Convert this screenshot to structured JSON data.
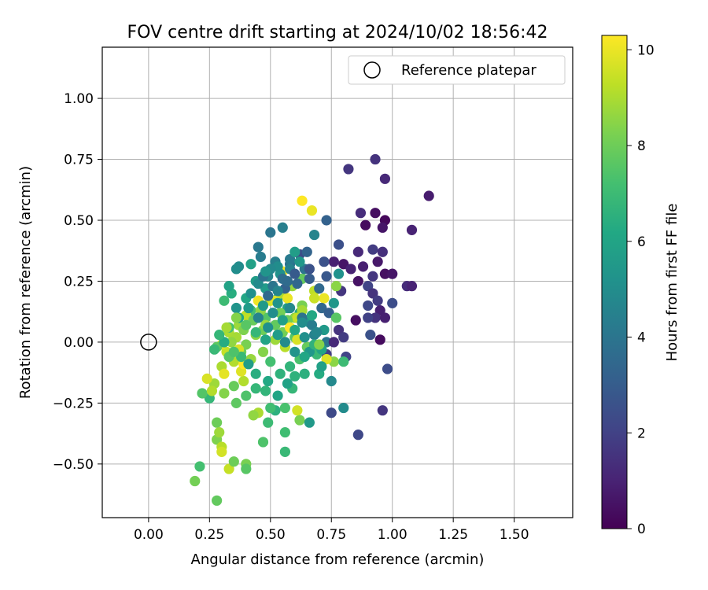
{
  "chart_data": {
    "type": "scatter",
    "title": "FOV centre drift starting at 2024/10/02 18:56:42",
    "xlabel": "Angular distance from reference (arcmin)",
    "ylabel": "Rotation from reference (arcmin)",
    "xlim": [
      -0.19,
      1.74
    ],
    "ylim": [
      -0.72,
      1.21
    ],
    "x_ticks": [
      0.0,
      0.25,
      0.5,
      0.75,
      1.0,
      1.25,
      1.5
    ],
    "x_tick_labels": [
      "0.00",
      "0.25",
      "0.50",
      "0.75",
      "1.00",
      "1.25",
      "1.50"
    ],
    "y_ticks": [
      -0.5,
      -0.25,
      0.0,
      0.25,
      0.5,
      0.75,
      1.0
    ],
    "y_tick_labels": [
      "−0.50",
      "−0.25",
      "0.00",
      "0.25",
      "0.50",
      "0.75",
      "1.00"
    ],
    "grid": true,
    "legend": {
      "position": "upper-right",
      "entries": [
        "Reference platepar"
      ]
    },
    "reference_point": {
      "x": 0.0,
      "y": 0.0,
      "label": "Reference platepar"
    },
    "colorbar": {
      "label": "Hours from first FF file",
      "range": [
        0,
        10.3
      ],
      "ticks": [
        0,
        2,
        4,
        6,
        8,
        10
      ],
      "tick_labels": [
        "0",
        "2",
        "4",
        "6",
        "8",
        "10"
      ],
      "colormap": "viridis"
    },
    "points": [
      [
        1.15,
        0.6,
        0.8
      ],
      [
        0.93,
        0.75,
        1.5
      ],
      [
        0.82,
        0.71,
        1.6
      ],
      [
        0.97,
        0.67,
        1.2
      ],
      [
        0.87,
        0.53,
        1.3
      ],
      [
        0.93,
        0.53,
        0.4
      ],
      [
        0.97,
        0.5,
        0.2
      ],
      [
        0.89,
        0.48,
        0.3
      ],
      [
        0.96,
        0.47,
        0.6
      ],
      [
        1.08,
        0.46,
        1.0
      ],
      [
        0.86,
        0.37,
        1.2
      ],
      [
        0.92,
        0.38,
        1.8
      ],
      [
        0.96,
        0.37,
        1.4
      ],
      [
        0.94,
        0.33,
        0.7
      ],
      [
        0.88,
        0.31,
        0.9
      ],
      [
        0.97,
        0.28,
        0.4
      ],
      [
        1.0,
        0.28,
        0.6
      ],
      [
        0.92,
        0.27,
        1.6
      ],
      [
        0.86,
        0.25,
        0.5
      ],
      [
        0.9,
        0.23,
        2.1
      ],
      [
        1.06,
        0.23,
        1.3
      ],
      [
        1.08,
        0.23,
        1.0
      ],
      [
        0.92,
        0.2,
        1.5
      ],
      [
        0.94,
        0.17,
        1.8
      ],
      [
        0.9,
        0.15,
        2.2
      ],
      [
        0.95,
        0.13,
        0.9
      ],
      [
        1.0,
        0.16,
        2.4
      ],
      [
        0.93,
        0.1,
        1.5
      ],
      [
        0.97,
        0.1,
        0.9
      ],
      [
        0.85,
        0.09,
        0.4
      ],
      [
        0.9,
        0.1,
        2.0
      ],
      [
        0.79,
        0.21,
        1.6
      ],
      [
        0.8,
        0.32,
        0.6
      ],
      [
        0.83,
        0.3,
        1.0
      ],
      [
        0.76,
        0.33,
        0.9
      ],
      [
        0.72,
        0.33,
        2.6
      ],
      [
        0.78,
        0.4,
        2.5
      ],
      [
        0.73,
        0.5,
        3.2
      ],
      [
        0.68,
        0.44,
        4.6
      ],
      [
        0.55,
        0.47,
        4.4
      ],
      [
        0.5,
        0.45,
        4.0
      ],
      [
        0.45,
        0.39,
        4.1
      ],
      [
        0.37,
        0.31,
        4.9
      ],
      [
        0.36,
        0.3,
        5.0
      ],
      [
        0.78,
        0.05,
        1.5
      ],
      [
        0.8,
        0.02,
        1.8
      ],
      [
        0.91,
        0.03,
        2.6
      ],
      [
        0.95,
        0.01,
        0.3
      ],
      [
        0.73,
        -0.05,
        1.9
      ],
      [
        0.81,
        -0.06,
        2.1
      ],
      [
        0.98,
        -0.11,
        2.4
      ],
      [
        0.75,
        -0.16,
        4.8
      ],
      [
        0.8,
        -0.27,
        4.9
      ],
      [
        0.75,
        -0.29,
        2.3
      ],
      [
        0.96,
        -0.28,
        1.6
      ],
      [
        0.86,
        -0.38,
        2.2
      ],
      [
        0.73,
        0.0,
        4.0
      ],
      [
        0.68,
        0.03,
        4.5
      ],
      [
        0.72,
        0.05,
        5.5
      ],
      [
        0.66,
        0.08,
        5.4
      ],
      [
        0.62,
        0.12,
        6.0
      ],
      [
        0.57,
        0.14,
        5.8
      ],
      [
        0.53,
        0.18,
        6.3
      ],
      [
        0.48,
        0.22,
        5.6
      ],
      [
        0.44,
        0.25,
        5.7
      ],
      [
        0.4,
        0.18,
        6.1
      ],
      [
        0.36,
        0.14,
        5.3
      ],
      [
        0.34,
        0.2,
        6.4
      ],
      [
        0.31,
        0.17,
        7.0
      ],
      [
        0.33,
        0.23,
        5.9
      ],
      [
        0.42,
        0.13,
        7.2
      ],
      [
        0.48,
        0.1,
        7.5
      ],
      [
        0.52,
        0.07,
        7.8
      ],
      [
        0.55,
        0.04,
        8.1
      ],
      [
        0.6,
        0.02,
        7.6
      ],
      [
        0.65,
        -0.02,
        7.9
      ],
      [
        0.69,
        -0.05,
        6.9
      ],
      [
        0.62,
        -0.07,
        7.3
      ],
      [
        0.58,
        -0.1,
        6.7
      ],
      [
        0.54,
        -0.13,
        6.6
      ],
      [
        0.49,
        -0.16,
        6.2
      ],
      [
        0.44,
        -0.19,
        6.8
      ],
      [
        0.4,
        -0.22,
        7.4
      ],
      [
        0.36,
        -0.25,
        7.7
      ],
      [
        0.31,
        -0.21,
        8.4
      ],
      [
        0.27,
        -0.17,
        8.8
      ],
      [
        0.25,
        -0.23,
        6.8
      ],
      [
        0.22,
        -0.21,
        7.5
      ],
      [
        0.28,
        -0.33,
        8.0
      ],
      [
        0.28,
        -0.4,
        8.3
      ],
      [
        0.3,
        -0.43,
        9.2
      ],
      [
        0.33,
        -0.52,
        9.4
      ],
      [
        0.35,
        -0.49,
        8.0
      ],
      [
        0.4,
        -0.5,
        8.2
      ],
      [
        0.4,
        -0.52,
        7.6
      ],
      [
        0.3,
        -0.45,
        9.6
      ],
      [
        0.29,
        -0.37,
        8.8
      ],
      [
        0.19,
        -0.57,
        8.1
      ],
      [
        0.21,
        -0.51,
        7.2
      ],
      [
        0.28,
        -0.65,
        7.8
      ],
      [
        0.56,
        -0.45,
        6.9
      ],
      [
        0.56,
        -0.37,
        7.1
      ],
      [
        0.49,
        -0.33,
        7.0
      ],
      [
        0.47,
        -0.41,
        7.4
      ],
      [
        0.52,
        -0.28,
        6.5
      ],
      [
        0.56,
        -0.27,
        7.3
      ],
      [
        0.59,
        -0.19,
        6.8
      ],
      [
        0.62,
        -0.32,
        8.2
      ],
      [
        0.66,
        -0.33,
        5.5
      ],
      [
        0.61,
        -0.28,
        9.6
      ],
      [
        0.64,
        -0.13,
        6.5
      ],
      [
        0.7,
        -0.13,
        6.3
      ],
      [
        0.76,
        -0.08,
        8.5
      ],
      [
        0.8,
        -0.08,
        7.0
      ],
      [
        0.66,
        -0.04,
        5.4
      ],
      [
        0.73,
        -0.07,
        9.8
      ],
      [
        0.39,
        -0.16,
        9.1
      ],
      [
        0.45,
        -0.29,
        9.0
      ],
      [
        0.43,
        -0.3,
        8.6
      ],
      [
        0.38,
        -0.12,
        9.8
      ],
      [
        0.35,
        -0.08,
        9.1
      ],
      [
        0.32,
        -0.04,
        9.4
      ],
      [
        0.3,
        -0.01,
        9.7
      ],
      [
        0.28,
        -0.02,
        7.7
      ],
      [
        0.33,
        0.04,
        9.0
      ],
      [
        0.37,
        0.07,
        8.8
      ],
      [
        0.4,
        0.11,
        9.3
      ],
      [
        0.46,
        0.13,
        8.5
      ],
      [
        0.5,
        0.17,
        9.6
      ],
      [
        0.54,
        0.2,
        9.0
      ],
      [
        0.59,
        0.23,
        8.7
      ],
      [
        0.63,
        0.26,
        7.8
      ],
      [
        0.68,
        0.21,
        9.3
      ],
      [
        0.72,
        0.18,
        10.0
      ],
      [
        0.68,
        0.18,
        9.5
      ],
      [
        0.63,
        0.15,
        8.2
      ],
      [
        0.6,
        0.1,
        8.5
      ],
      [
        0.58,
        0.06,
        9.1
      ],
      [
        0.61,
        0.01,
        9.7
      ],
      [
        0.56,
        -0.02,
        9.2
      ],
      [
        0.52,
        0.01,
        8.8
      ],
      [
        0.47,
        0.05,
        8.0
      ],
      [
        0.43,
        0.09,
        7.9
      ],
      [
        0.39,
        0.05,
        8.3
      ],
      [
        0.36,
        0.02,
        8.9
      ],
      [
        0.33,
        -0.06,
        7.6
      ],
      [
        0.38,
        -0.04,
        8.0
      ],
      [
        0.42,
        -0.07,
        8.7
      ],
      [
        0.47,
        -0.04,
        8.4
      ],
      [
        0.5,
        -0.08,
        7.2
      ],
      [
        0.45,
        0.17,
        10.1
      ],
      [
        0.52,
        0.17,
        9.8
      ],
      [
        0.57,
        0.18,
        10.0
      ],
      [
        0.55,
        0.29,
        10.2
      ],
      [
        0.61,
        0.1,
        9.4
      ],
      [
        0.63,
        0.13,
        8.9
      ],
      [
        0.57,
        0.09,
        8.0
      ],
      [
        0.54,
        0.12,
        8.1
      ],
      [
        0.48,
        0.07,
        8.7
      ],
      [
        0.44,
        0.03,
        8.5
      ],
      [
        0.4,
        -0.01,
        8.2
      ],
      [
        0.37,
        -0.03,
        9.7
      ],
      [
        0.34,
        0.0,
        8.6
      ],
      [
        0.3,
        -0.1,
        9.0
      ],
      [
        0.31,
        -0.13,
        9.9
      ],
      [
        0.35,
        -0.18,
        7.9
      ],
      [
        0.39,
        -0.09,
        10.3
      ],
      [
        0.58,
        0.06,
        10.3
      ],
      [
        0.63,
        0.58,
        10.3
      ],
      [
        0.67,
        0.54,
        10.0
      ],
      [
        0.64,
        0.3,
        4.0
      ],
      [
        0.58,
        0.32,
        3.8
      ],
      [
        0.52,
        0.33,
        4.4
      ],
      [
        0.54,
        0.28,
        5.2
      ],
      [
        0.49,
        0.27,
        4.6
      ],
      [
        0.45,
        0.24,
        4.9
      ],
      [
        0.42,
        0.2,
        5.1
      ],
      [
        0.47,
        0.15,
        5.5
      ],
      [
        0.51,
        0.12,
        5.0
      ],
      [
        0.55,
        0.09,
        5.8
      ],
      [
        0.6,
        0.05,
        6.2
      ],
      [
        0.64,
        0.02,
        5.1
      ],
      [
        0.68,
        -0.01,
        6.6
      ],
      [
        0.71,
        -0.03,
        6.0
      ],
      [
        0.67,
        0.07,
        4.3
      ],
      [
        0.63,
        0.1,
        3.9
      ],
      [
        0.58,
        0.14,
        4.8
      ],
      [
        0.53,
        0.16,
        5.3
      ],
      [
        0.49,
        0.19,
        3.6
      ],
      [
        0.56,
        0.22,
        3.2
      ],
      [
        0.61,
        0.24,
        3.4
      ],
      [
        0.66,
        0.26,
        3.0
      ],
      [
        0.7,
        0.22,
        3.5
      ],
      [
        0.73,
        0.27,
        2.8
      ],
      [
        0.66,
        0.3,
        2.6
      ],
      [
        0.62,
        0.36,
        2.4
      ],
      [
        0.58,
        0.34,
        4.2
      ],
      [
        0.53,
        0.31,
        5.0
      ],
      [
        0.5,
        0.3,
        4.8
      ],
      [
        0.47,
        0.27,
        3.9
      ],
      [
        0.6,
        0.37,
        5.7
      ],
      [
        0.62,
        0.33,
        5.4
      ],
      [
        0.58,
        0.3,
        4.5
      ],
      [
        0.55,
        0.26,
        3.7
      ],
      [
        0.51,
        0.23,
        4.0
      ],
      [
        0.48,
        0.29,
        5.3
      ],
      [
        0.65,
        0.37,
        3.3
      ],
      [
        0.6,
        0.28,
        2.9
      ],
      [
        0.57,
        0.25,
        3.6
      ],
      [
        0.53,
        0.21,
        4.6
      ],
      [
        0.42,
        0.32,
        5.8
      ],
      [
        0.46,
        0.35,
        4.3
      ],
      [
        0.78,
        0.28,
        5.2
      ],
      [
        0.77,
        0.23,
        8.5
      ],
      [
        0.71,
        0.14,
        3.4
      ],
      [
        0.67,
        0.11,
        6.2
      ],
      [
        0.63,
        0.08,
        5.0
      ],
      [
        0.69,
        0.04,
        4.7
      ],
      [
        0.74,
        0.12,
        3.1
      ],
      [
        0.76,
        0.16,
        5.4
      ],
      [
        0.77,
        0.1,
        7.6
      ],
      [
        0.76,
        0.0,
        1.2
      ],
      [
        0.7,
        -0.01,
        8.4
      ],
      [
        0.71,
        -0.1,
        5.8
      ],
      [
        0.64,
        -0.06,
        6.1
      ],
      [
        0.6,
        -0.14,
        6.6
      ],
      [
        0.57,
        -0.17,
        5.9
      ],
      [
        0.53,
        -0.22,
        6.0
      ],
      [
        0.5,
        -0.27,
        7.1
      ],
      [
        0.48,
        -0.2,
        6.7
      ],
      [
        0.44,
        -0.13,
        6.4
      ],
      [
        0.41,
        -0.09,
        5.7
      ],
      [
        0.38,
        -0.06,
        6.9
      ],
      [
        0.35,
        -0.04,
        7.4
      ],
      [
        0.31,
        0.0,
        6.3
      ],
      [
        0.29,
        0.03,
        6.8
      ],
      [
        0.33,
        0.06,
        7.2
      ],
      [
        0.37,
        0.1,
        6.1
      ],
      [
        0.41,
        0.14,
        5.6
      ],
      [
        0.45,
        0.1,
        4.6
      ],
      [
        0.49,
        0.06,
        5.1
      ],
      [
        0.53,
        0.03,
        5.6
      ],
      [
        0.56,
        0.0,
        4.9
      ],
      [
        0.6,
        -0.04,
        5.3
      ],
      [
        0.48,
        0.01,
        6.0
      ],
      [
        0.44,
        0.04,
        6.8
      ],
      [
        0.4,
        0.07,
        7.6
      ],
      [
        0.36,
        0.1,
        8.4
      ],
      [
        0.32,
        0.06,
        8.9
      ],
      [
        0.27,
        -0.03,
        6.9
      ],
      [
        0.26,
        -0.2,
        9.1
      ],
      [
        0.24,
        -0.15,
        9.7
      ]
    ]
  }
}
